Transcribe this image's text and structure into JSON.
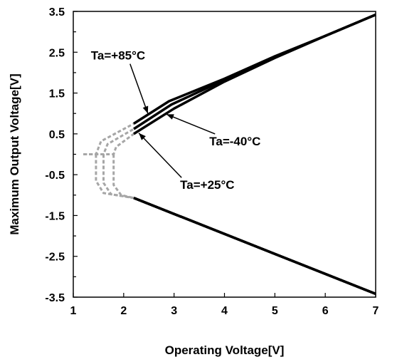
{
  "chart_data": {
    "type": "line",
    "title": "",
    "xlabel": "Operating Voltage[V]",
    "ylabel": "Maximum Output Voltage[V]",
    "xlim": [
      1,
      7
    ],
    "ylim": [
      -3.5,
      3.5
    ],
    "x_ticks": [
      "1",
      "2",
      "3",
      "4",
      "5",
      "6",
      "7"
    ],
    "y_ticks": [
      "3.5",
      "2.5",
      "1.5",
      "0.5",
      "-0.5",
      "-1.5",
      "-2.5",
      "-3.5"
    ],
    "grid": false,
    "colors": {
      "solid": "#000000",
      "dashed": "#a6a6a6"
    },
    "series": [
      {
        "solid_pos": [
          [
            2.2,
            0.75
          ],
          [
            2.9,
            1.3
          ],
          [
            4.0,
            1.85
          ],
          [
            5.0,
            2.4
          ],
          [
            6.0,
            2.9
          ],
          [
            7.0,
            3.42
          ]
        ],
        "solid_neg": [
          [
            2.2,
            -1.07
          ],
          [
            7.0,
            -3.42
          ]
        ],
        "dashed": [
          [
            1.2,
            0.0
          ],
          [
            1.45,
            0.0
          ],
          [
            1.55,
            0.32
          ],
          [
            2.2,
            0.75
          ]
        ],
        "dashed_neg": [
          [
            1.45,
            0.0
          ],
          [
            1.45,
            -0.65
          ],
          [
            1.6,
            -0.95
          ],
          [
            2.2,
            -1.07
          ]
        ]
      },
      {
        "solid_pos": [
          [
            2.2,
            0.62
          ],
          [
            2.95,
            1.22
          ],
          [
            4.0,
            1.82
          ],
          [
            5.0,
            2.38
          ],
          [
            6.0,
            2.9
          ],
          [
            7.0,
            3.42
          ]
        ],
        "solid_neg": [
          [
            2.2,
            -1.07
          ],
          [
            7.0,
            -3.42
          ]
        ],
        "dashed": [
          [
            1.2,
            0.0
          ],
          [
            1.6,
            0.0
          ],
          [
            1.68,
            0.25
          ],
          [
            2.2,
            0.62
          ]
        ],
        "dashed_neg": [
          [
            1.6,
            0.0
          ],
          [
            1.6,
            -0.7
          ],
          [
            1.75,
            -0.98
          ],
          [
            2.2,
            -1.07
          ]
        ]
      },
      {
        "solid_pos": [
          [
            2.2,
            0.5
          ],
          [
            3.0,
            1.12
          ],
          [
            4.0,
            1.78
          ],
          [
            5.0,
            2.36
          ],
          [
            6.0,
            2.9
          ],
          [
            7.0,
            3.42
          ]
        ],
        "solid_neg": [
          [
            2.2,
            -1.07
          ],
          [
            7.0,
            -3.42
          ]
        ],
        "dashed": [
          [
            1.2,
            0.0
          ],
          [
            1.8,
            0.0
          ],
          [
            1.85,
            0.18
          ],
          [
            2.2,
            0.5
          ]
        ],
        "dashed_neg": [
          [
            1.8,
            0.0
          ],
          [
            1.8,
            -0.75
          ],
          [
            1.95,
            -1.0
          ],
          [
            2.2,
            -1.07
          ]
        ]
      }
    ],
    "annotations": [
      {
        "text": "Ta=+85°C",
        "x": 1.35,
        "y": 2.32,
        "arrow_to": [
          2.48,
          1.0
        ]
      },
      {
        "text": "Ta=-40°C",
        "x": 3.7,
        "y": 0.22,
        "arrow_to": [
          2.85,
          0.98
        ]
      },
      {
        "text": "Ta=+25°C",
        "x": 3.12,
        "y": -0.85,
        "arrow_to": [
          2.3,
          0.52
        ]
      }
    ]
  }
}
